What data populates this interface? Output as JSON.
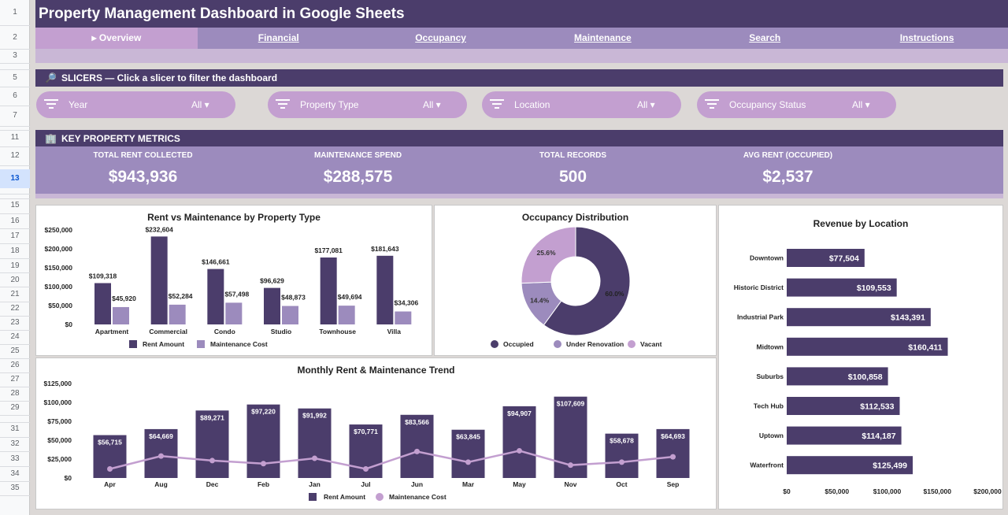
{
  "row_numbers": [
    "1",
    "2",
    "3",
    "5",
    "6",
    "7",
    "11",
    "12",
    "13",
    "15",
    "16",
    "17",
    "18",
    "19",
    "20",
    "21",
    "22",
    "23",
    "24",
    "25",
    "26",
    "27",
    "28",
    "29",
    "31",
    "32",
    "33",
    "34",
    "35"
  ],
  "selected_row": "13",
  "title": "Property Management Dashboard in Google Sheets",
  "nav": {
    "tabs": [
      {
        "label": "▸ Overview",
        "active": true
      },
      {
        "label": "Financial",
        "active": false
      },
      {
        "label": "Occupancy",
        "active": false
      },
      {
        "label": "Maintenance",
        "active": false
      },
      {
        "label": "Search",
        "active": false
      },
      {
        "label": "Instructions",
        "active": false
      }
    ]
  },
  "slicers_section": {
    "icon": "magnifier-icon",
    "label": "SLICERS — Click a slicer to filter the dashboard"
  },
  "slicers": [
    {
      "label": "Year",
      "value": "All ▾"
    },
    {
      "label": "Property Type",
      "value": "All ▾"
    },
    {
      "label": "Location",
      "value": "All ▾"
    },
    {
      "label": "Occupancy Status",
      "value": "All ▾"
    }
  ],
  "metrics_section": {
    "icon": "building-icon",
    "label": "KEY PROPERTY METRICS"
  },
  "metrics": [
    {
      "label": "TOTAL RENT COLLECTED",
      "value": "$943,936"
    },
    {
      "label": "MAINTENANCE SPEND",
      "value": "$288,575"
    },
    {
      "label": "TOTAL RECORDS",
      "value": "500"
    },
    {
      "label": "AVG RENT (OCCUPIED)",
      "value": "$2,537"
    }
  ],
  "colors": {
    "rent": "#4b3d6b",
    "maintenance": "#9c8bbd",
    "vacant": "#c39fd0",
    "header": "#4b3d6b"
  },
  "chart_data": [
    {
      "type": "bar",
      "title": "Rent vs Maintenance by Property Type",
      "categories": [
        "Apartment",
        "Commercial",
        "Condo",
        "Studio",
        "Townhouse",
        "Villa"
      ],
      "series": [
        {
          "name": "Rent Amount",
          "values": [
            109318,
            232604,
            146661,
            96629,
            177081,
            181643
          ],
          "labels": [
            "$109,318",
            "$232,604",
            "$146,661",
            "$96,629",
            "$177,081",
            "$181,643"
          ]
        },
        {
          "name": "Maintenance Cost",
          "values": [
            45920,
            52284,
            57498,
            48873,
            49694,
            34306
          ],
          "labels": [
            "$45,920",
            "$52,284",
            "$57,498",
            "$48,873",
            "$49,694",
            "$34,306"
          ]
        }
      ],
      "ylim": [
        0,
        250000
      ],
      "yticks": [
        "$0",
        "$50,000",
        "$100,000",
        "$150,000",
        "$200,000",
        "$250,000"
      ],
      "legend": "bottom"
    },
    {
      "type": "pie",
      "title": "Occupancy Distribution",
      "categories": [
        "Occupied",
        "Under Renovation",
        "Vacant"
      ],
      "values": [
        60.0,
        14.4,
        25.6
      ],
      "labels": [
        "60.0%",
        "14.4%",
        "25.6%"
      ],
      "legend": "bottom"
    },
    {
      "type": "bar",
      "title": "Revenue by Location",
      "orientation": "horizontal",
      "categories": [
        "Downtown",
        "Historic District",
        "Industrial Park",
        "Midtown",
        "Suburbs",
        "Tech Hub",
        "Uptown",
        "Waterfront"
      ],
      "values": [
        77504,
        109553,
        143391,
        160411,
        100858,
        112533,
        114187,
        125499
      ],
      "labels": [
        "$77,504",
        "$109,553",
        "$143,391",
        "$160,411",
        "$100,858",
        "$112,533",
        "$114,187",
        "$125,499"
      ],
      "xlim": [
        0,
        200000
      ],
      "xticks": [
        "$0",
        "$50,000",
        "$100,000",
        "$150,000",
        "$200,000"
      ]
    },
    {
      "type": "bar",
      "title": "Monthly Rent & Maintenance Trend",
      "categories": [
        "Apr",
        "Aug",
        "Dec",
        "Feb",
        "Jan",
        "Jul",
        "Jun",
        "Mar",
        "May",
        "Nov",
        "Oct",
        "Sep"
      ],
      "series": [
        {
          "name": "Rent Amount",
          "kind": "bar",
          "values": [
            56715,
            64669,
            89271,
            97220,
            91992,
            70771,
            83566,
            63845,
            94907,
            107609,
            58678,
            64693
          ],
          "labels": [
            "$56,715",
            "$64,669",
            "$89,271",
            "$97,220",
            "$91,992",
            "$70,771",
            "$83,566",
            "$63,845",
            "$94,907",
            "$107,609",
            "$58,678",
            "$64,693"
          ]
        },
        {
          "name": "Maintenance Cost",
          "kind": "line",
          "values": [
            12000,
            29000,
            23000,
            19000,
            26000,
            12000,
            35000,
            21000,
            36000,
            17000,
            21000,
            28000
          ]
        }
      ],
      "ylim": [
        0,
        125000
      ],
      "yticks": [
        "$0",
        "$25,000",
        "$50,000",
        "$75,000",
        "$100,000",
        "$125,000"
      ],
      "legend": "bottom"
    }
  ]
}
